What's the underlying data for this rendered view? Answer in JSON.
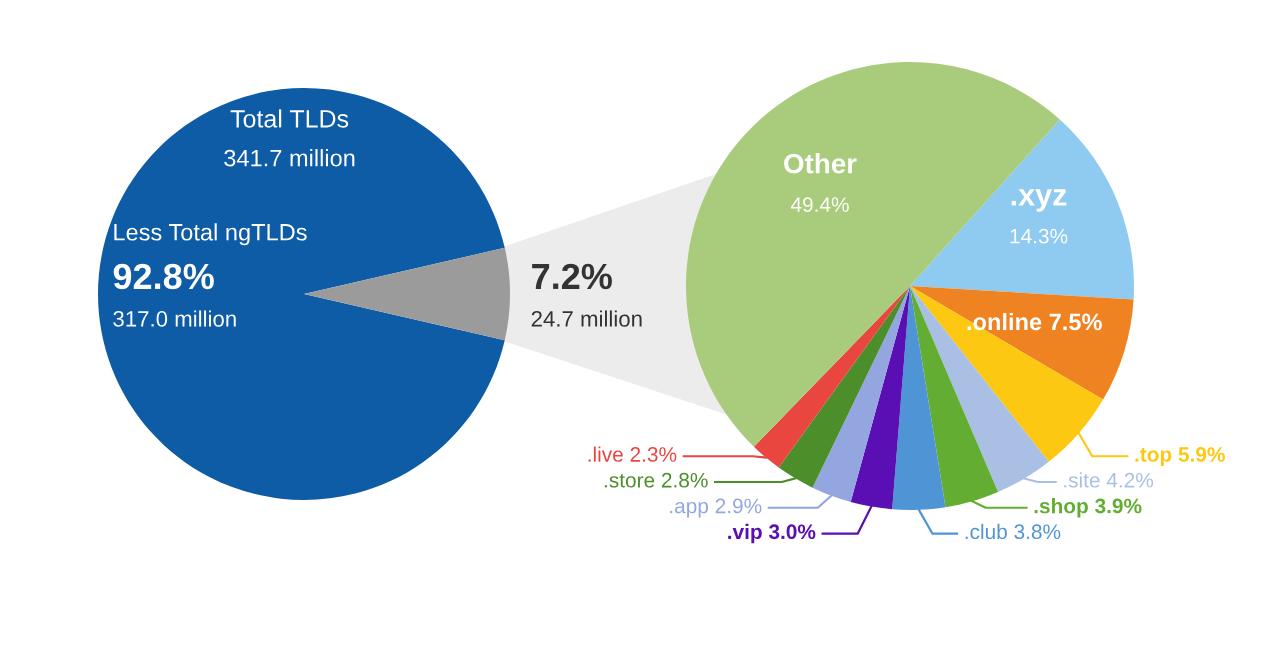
{
  "chart_data": [
    {
      "type": "pie",
      "title": "Total TLDs\n341.7 million",
      "categories": [
        "Less Total ngTLDs",
        null
      ],
      "values": [
        92.8,
        7.2
      ],
      "colors": [
        "#0e5ca6",
        "#9b9b9b"
      ],
      "value_labels": [
        "92.8%\n317.0 million",
        "7.2%\n24.7 million"
      ]
    },
    {
      "type": "pie",
      "categories": [
        ".xyz",
        ".online",
        ".top",
        ".site",
        ".shop",
        ".club",
        ".vip",
        ".app",
        ".store",
        ".live",
        "Other"
      ],
      "values": [
        14.3,
        7.5,
        5.9,
        4.2,
        3.9,
        3.8,
        3.0,
        2.9,
        2.8,
        2.3,
        49.4
      ],
      "colors": [
        "#8fcbf0",
        "#f08321",
        "#fcc812",
        "#a9bfe4",
        "#63ae32",
        "#4f95d6",
        "#5a0fb4",
        "#93a6e0",
        "#4b8e2a",
        "#e8463f",
        "#a9cc7c"
      ],
      "value_labels": [
        "14.3%",
        "7.5%",
        "5.9%",
        "4.2%",
        "3.9%",
        "3.8%",
        "3.0%",
        "2.9%",
        "2.8%",
        "2.3%",
        "49.4%"
      ]
    }
  ]
}
